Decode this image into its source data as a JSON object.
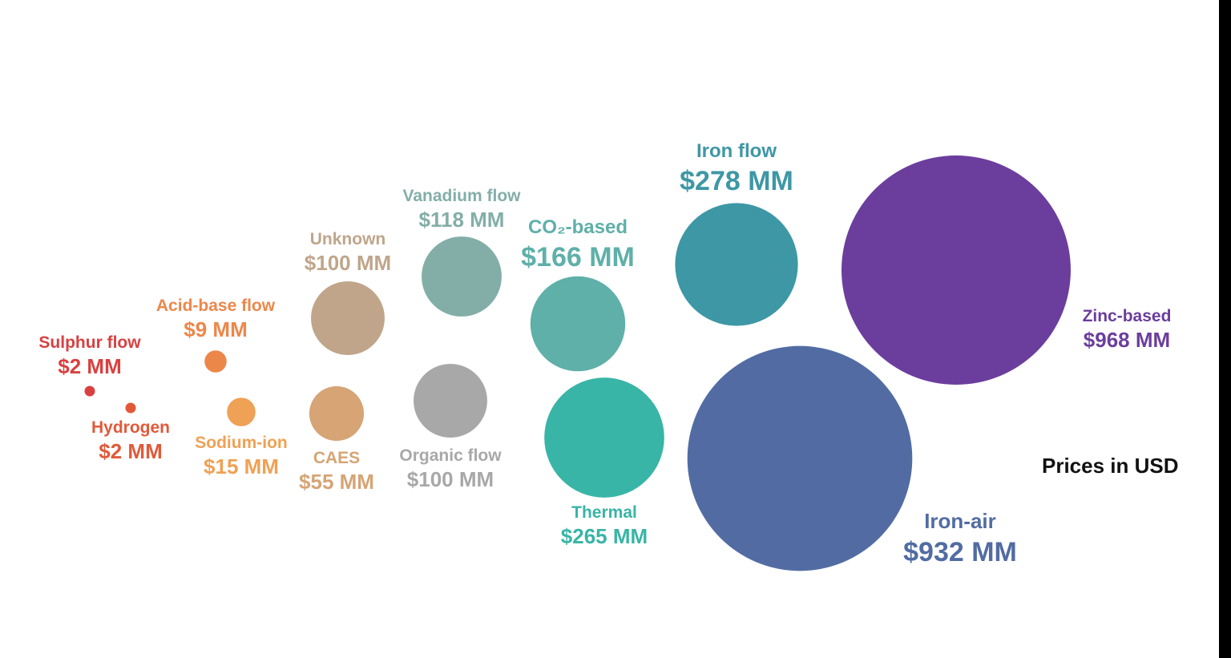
{
  "chart_data": {
    "type": "bubble",
    "note": "Prices in USD",
    "unit": "MM",
    "series": [
      {
        "name": "Sulphur flow",
        "value": 2,
        "display": "$2 MM",
        "color": "#d94040"
      },
      {
        "name": "Hydrogen",
        "value": 2,
        "display": "$2 MM",
        "color": "#e05a3a"
      },
      {
        "name": "Acid-base flow",
        "value": 9,
        "display": "$9 MM",
        "color": "#ec874a"
      },
      {
        "name": "Sodium-ion",
        "value": 15,
        "display": "$15 MM",
        "color": "#efa155"
      },
      {
        "name": "CAES",
        "value": 55,
        "display": "$55 MM",
        "color": "#d6a475"
      },
      {
        "name": "Unknown",
        "value": 100,
        "display": "$100 MM",
        "color": "#c0a58a"
      },
      {
        "name": "Organic flow",
        "value": 100,
        "display": "$100 MM",
        "color": "#a8a8a8"
      },
      {
        "name": "Vanadium flow",
        "value": 118,
        "display": "$118 MM",
        "color": "#83aea8"
      },
      {
        "name": "CO₂-based",
        "value": 166,
        "display": "$166 MM",
        "color": "#5fb0a9"
      },
      {
        "name": "Thermal",
        "value": 265,
        "display": "$265 MM",
        "color": "#38b5a6"
      },
      {
        "name": "Iron flow",
        "value": 278,
        "display": "$278 MM",
        "color": "#3e97a5"
      },
      {
        "name": "Iron-air",
        "value": 932,
        "display": "$932 MM",
        "color": "#526ca3"
      },
      {
        "name": "Zinc-based",
        "value": 968,
        "display": "$968 MM",
        "color": "#6b3e9d"
      }
    ]
  }
}
